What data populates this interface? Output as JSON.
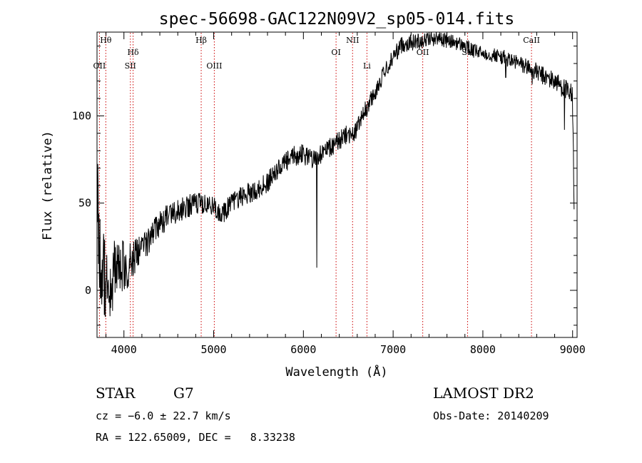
{
  "chart_data": {
    "type": "line",
    "title": "spec-56698-GAC122N09V2_sp05-014.fits",
    "xlabel": "Wavelength (Å)",
    "ylabel": "Flux (relative)",
    "xlim": [
      3700,
      9050
    ],
    "ylim": [
      -27,
      148
    ],
    "x_ticks": [
      4000,
      5000,
      6000,
      7000,
      8000,
      9000
    ],
    "y_ticks": [
      0,
      50,
      100
    ],
    "grid": false,
    "line_color": "#000000",
    "marker_color": "#cc0000",
    "anchors": [
      [
        3700,
        70
      ],
      [
        3720,
        30
      ],
      [
        3750,
        10
      ],
      [
        3800,
        8
      ],
      [
        3850,
        5
      ],
      [
        3900,
        10
      ],
      [
        3950,
        15
      ],
      [
        4000,
        12
      ],
      [
        4100,
        18
      ],
      [
        4200,
        25
      ],
      [
        4300,
        30
      ],
      [
        4400,
        38
      ],
      [
        4500,
        43
      ],
      [
        4600,
        45
      ],
      [
        4700,
        48
      ],
      [
        4800,
        50
      ],
      [
        4900,
        49
      ],
      [
        5000,
        48
      ],
      [
        5100,
        44
      ],
      [
        5200,
        50
      ],
      [
        5300,
        54
      ],
      [
        5400,
        56
      ],
      [
        5500,
        58
      ],
      [
        5600,
        62
      ],
      [
        5700,
        68
      ],
      [
        5800,
        73
      ],
      [
        5900,
        77
      ],
      [
        6000,
        78
      ],
      [
        6100,
        76
      ],
      [
        6200,
        78
      ],
      [
        6300,
        82
      ],
      [
        6400,
        86
      ],
      [
        6500,
        90
      ],
      [
        6560,
        88
      ],
      [
        6600,
        94
      ],
      [
        6700,
        104
      ],
      [
        6800,
        114
      ],
      [
        6900,
        124
      ],
      [
        7000,
        134
      ],
      [
        7100,
        141
      ],
      [
        7200,
        142
      ],
      [
        7300,
        143
      ],
      [
        7400,
        144
      ],
      [
        7500,
        145
      ],
      [
        7600,
        143
      ],
      [
        7700,
        142
      ],
      [
        7800,
        140
      ],
      [
        7900,
        137
      ],
      [
        8000,
        136
      ],
      [
        8100,
        135
      ],
      [
        8200,
        134
      ],
      [
        8300,
        132
      ],
      [
        8400,
        130
      ],
      [
        8500,
        128
      ],
      [
        8600,
        125
      ],
      [
        8700,
        122
      ],
      [
        8800,
        120
      ],
      [
        8850,
        118
      ],
      [
        8900,
        116
      ],
      [
        8950,
        112
      ],
      [
        9000,
        110
      ],
      [
        9010,
        80
      ],
      [
        9020,
        40
      ]
    ],
    "noise": [
      [
        3700,
        25
      ],
      [
        3900,
        22
      ],
      [
        4100,
        10
      ],
      [
        4300,
        8
      ],
      [
        5000,
        6
      ],
      [
        6000,
        6
      ],
      [
        7000,
        5
      ],
      [
        8000,
        4
      ],
      [
        8900,
        6
      ],
      [
        9020,
        10
      ]
    ],
    "features": [
      [
        6150,
        13
      ],
      [
        8910,
        92
      ],
      [
        8550,
        118
      ],
      [
        8255,
        122
      ]
    ],
    "lines": [
      {
        "label": "Hθ",
        "wavelength": 3798,
        "row": 0
      },
      {
        "label": "OII",
        "wavelength": 3727,
        "row": 2
      },
      {
        "label": "Hδ",
        "wavelength": 4102,
        "row": 1
      },
      {
        "label": "SII",
        "wavelength": 4072,
        "row": 2
      },
      {
        "label": "Hβ",
        "wavelength": 4861,
        "row": 0
      },
      {
        "label": "OIII",
        "wavelength": 5007,
        "row": 2
      },
      {
        "label": "OI",
        "wavelength": 6364,
        "row": 1
      },
      {
        "label": "NII",
        "wavelength": 6548,
        "row": 0
      },
      {
        "label": "Li",
        "wavelength": 6708,
        "row": 2
      },
      {
        "label": "OII",
        "wavelength": 7330,
        "row": 1
      },
      {
        "label": "SII",
        "wavelength": 7830,
        "row": 1
      },
      {
        "label": "CaII",
        "wavelength": 8542,
        "row": 0
      }
    ]
  },
  "info": {
    "object_type": "STAR",
    "subclass": "G7",
    "cz": "cz = −6.0 ± 22.7 km/s",
    "radec": "RA = 122.65009, DEC =   8.33238",
    "survey": "LAMOST DR2",
    "obs_date": "Obs-Date: 20140209"
  }
}
